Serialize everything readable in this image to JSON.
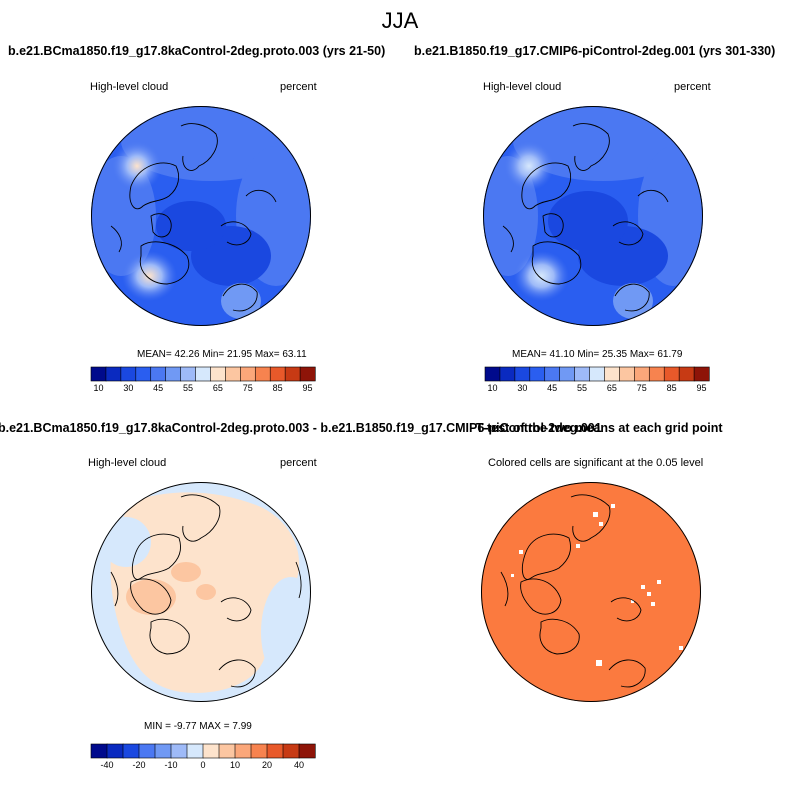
{
  "season_title": "JJA",
  "panels": [
    {
      "title": "b.e21.BCma1850.f19_g17.8kaControl-2deg.proto.003 (yrs 21-50)",
      "left_label": "High-level cloud",
      "right_label": "percent",
      "stats": "MEAN=  42.26   Min=  21.95   Max=  63.11",
      "colorbar_ticks": [
        "10",
        "30",
        "45",
        "55",
        "65",
        "75",
        "85",
        "95"
      ]
    },
    {
      "title": "b.e21.B1850.f19_g17.CMIP6-piControl-2deg.001 (yrs 301-330)",
      "left_label": "High-level cloud",
      "right_label": "percent",
      "stats": "MEAN=  41.10   Min=  25.35   Max=  61.79",
      "colorbar_ticks": [
        "10",
        "30",
        "45",
        "55",
        "65",
        "75",
        "85",
        "95"
      ]
    },
    {
      "title": "b.e21.BCma1850.f19_g17.8kaControl-2deg.proto.003 - b.e21.B1850.f19_g17.CMIP6-piControl-2deg.001",
      "left_label": "High-level cloud",
      "right_label": "percent",
      "stats": "MIN =  -9.77  MAX =   7.99",
      "colorbar_ticks": [
        "-40",
        "-20",
        "-10",
        "0",
        "10",
        "20",
        "40"
      ]
    },
    {
      "title": "T-test of the two means at each grid point",
      "subtitle": "Colored cells are significant at the 0.05 level"
    }
  ],
  "colors": {
    "abs_scale": [
      "#000a8c",
      "#0a2ac0",
      "#1a48e0",
      "#2a5ef0",
      "#4b78f2",
      "#7099f4",
      "#9ebaf8",
      "#d6e8fc",
      "#fde3cc",
      "#fcc6a1",
      "#fba77a",
      "#f7834f",
      "#e8592a",
      "#c73a14",
      "#8e1408"
    ],
    "diff_scale": [
      "#000a8c",
      "#0a2ac0",
      "#1a48e0",
      "#4b78f2",
      "#7099f4",
      "#9ebaf8",
      "#d6e8fc",
      "#fde3cc",
      "#fcc6a1",
      "#fba77a",
      "#f7834f",
      "#e8592a",
      "#c73a14",
      "#8e1408"
    ],
    "ttest_fill": "#fb7a3f"
  }
}
